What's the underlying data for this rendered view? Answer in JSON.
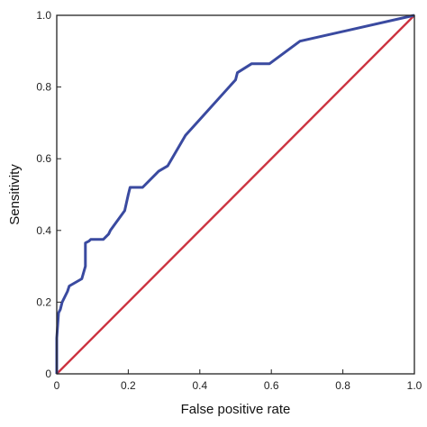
{
  "chart_data": {
    "type": "line",
    "title": "",
    "xlabel": "False positive rate",
    "ylabel": "Sensitivity",
    "xlim": [
      0,
      1
    ],
    "ylim": [
      0,
      1
    ],
    "xticks": [
      "0",
      "0.2",
      "0.4",
      "0.6",
      "0.8",
      "1.0"
    ],
    "yticks": [
      "0",
      "0.2",
      "0.4",
      "0.6",
      "0.8",
      "1.0"
    ],
    "grid": false,
    "legend": "none",
    "series": [
      {
        "color": "#3a4aa0",
        "x": [
          0,
          0,
          0.005,
          0.01,
          0.015,
          0.03,
          0.035,
          0.07,
          0.08,
          0.08,
          0.09,
          0.095,
          0.13,
          0.145,
          0.15,
          0.19,
          0.2,
          0.205,
          0.24,
          0.285,
          0.31,
          0.36,
          0.5,
          0.505,
          0.545,
          0.595,
          0.68,
          1.0
        ],
        "y": [
          0,
          0.1,
          0.17,
          0.18,
          0.2,
          0.23,
          0.245,
          0.265,
          0.3,
          0.365,
          0.37,
          0.375,
          0.375,
          0.39,
          0.4,
          0.455,
          0.5,
          0.52,
          0.52,
          0.565,
          0.58,
          0.665,
          0.82,
          0.84,
          0.865,
          0.865,
          0.928,
          1.0
        ]
      },
      {
        "color": "#cc3340",
        "x": [
          0,
          1
        ],
        "y": [
          0,
          1
        ]
      }
    ]
  }
}
